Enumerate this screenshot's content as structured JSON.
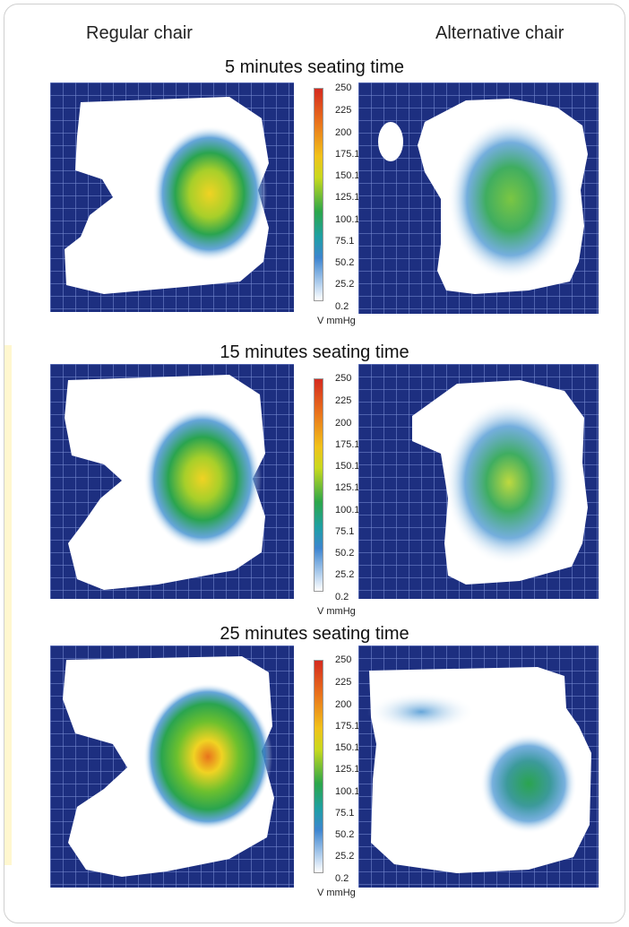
{
  "chart_data": {
    "type": "heatmap",
    "columns": [
      "Regular chair",
      "Alternative chair"
    ],
    "rows": [
      {
        "title": "5 minutes seating time"
      },
      {
        "title": "15 minutes seating time"
      },
      {
        "title": "25 minutes seating time"
      }
    ],
    "scale": {
      "ticks": [
        "250",
        "225",
        "200",
        "175.1",
        "150.1",
        "125.1",
        "100.1",
        "75.1",
        "50.2",
        "25.2",
        "0.2"
      ],
      "unit": "V mmHg",
      "min": 0.2,
      "max": 250
    }
  }
}
